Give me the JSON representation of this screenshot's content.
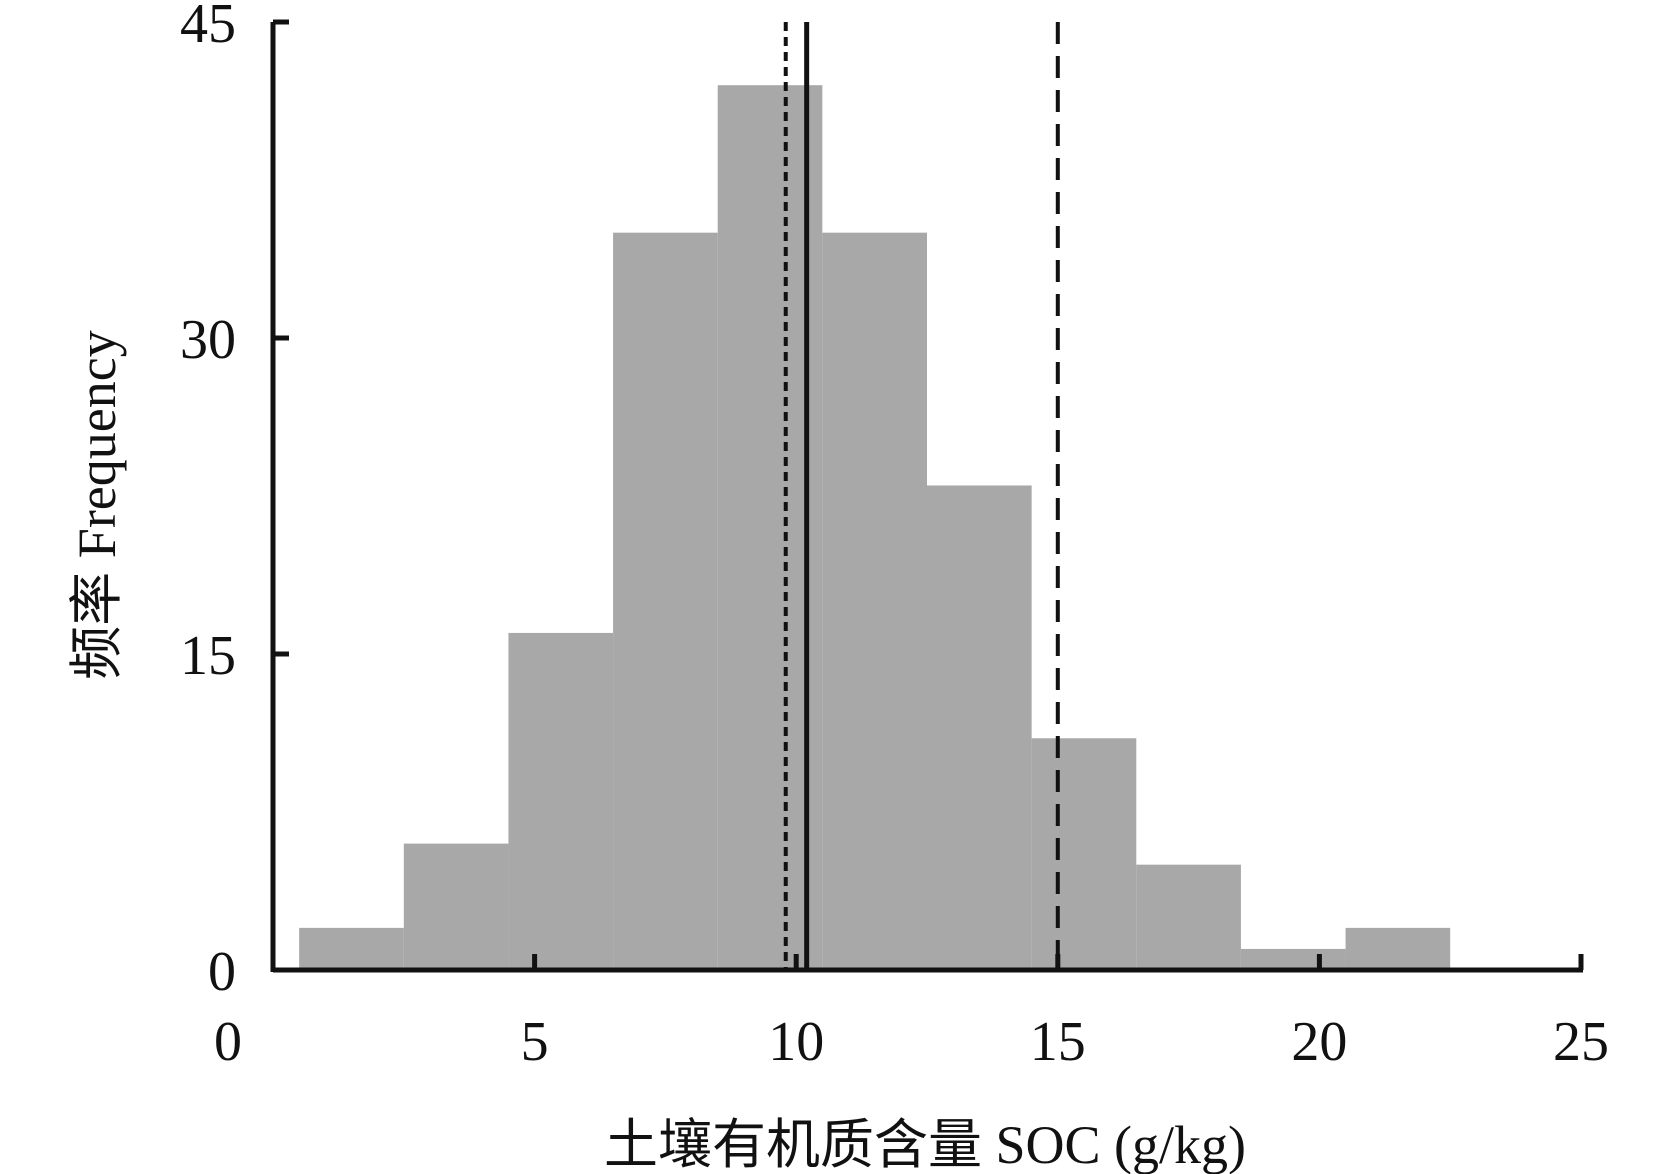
{
  "chart_data": {
    "type": "bar",
    "xlabel": "土壤有机质含量 SOC (g/kg)",
    "ylabel": "频率 Frequency",
    "xlim": [
      0,
      25
    ],
    "ylim": [
      0,
      45
    ],
    "x_ticks": [
      0,
      5,
      10,
      15,
      20,
      25
    ],
    "y_ticks": [
      0,
      15,
      30,
      45
    ],
    "bin_edges": [
      0.5,
      2.5,
      4.5,
      6.5,
      8.5,
      10.5,
      12.5,
      14.5,
      16.5,
      18.5,
      20.5,
      22.5
    ],
    "values": [
      2,
      6,
      16,
      35,
      42,
      35,
      23,
      11,
      5,
      1,
      2
    ],
    "bar_color": "#a8a8a8",
    "reference_lines": [
      {
        "x": 10.2,
        "style": "solid"
      },
      {
        "x": 9.8,
        "style": "dotted"
      },
      {
        "x": 15.0,
        "style": "dashed"
      }
    ],
    "grid": false
  }
}
